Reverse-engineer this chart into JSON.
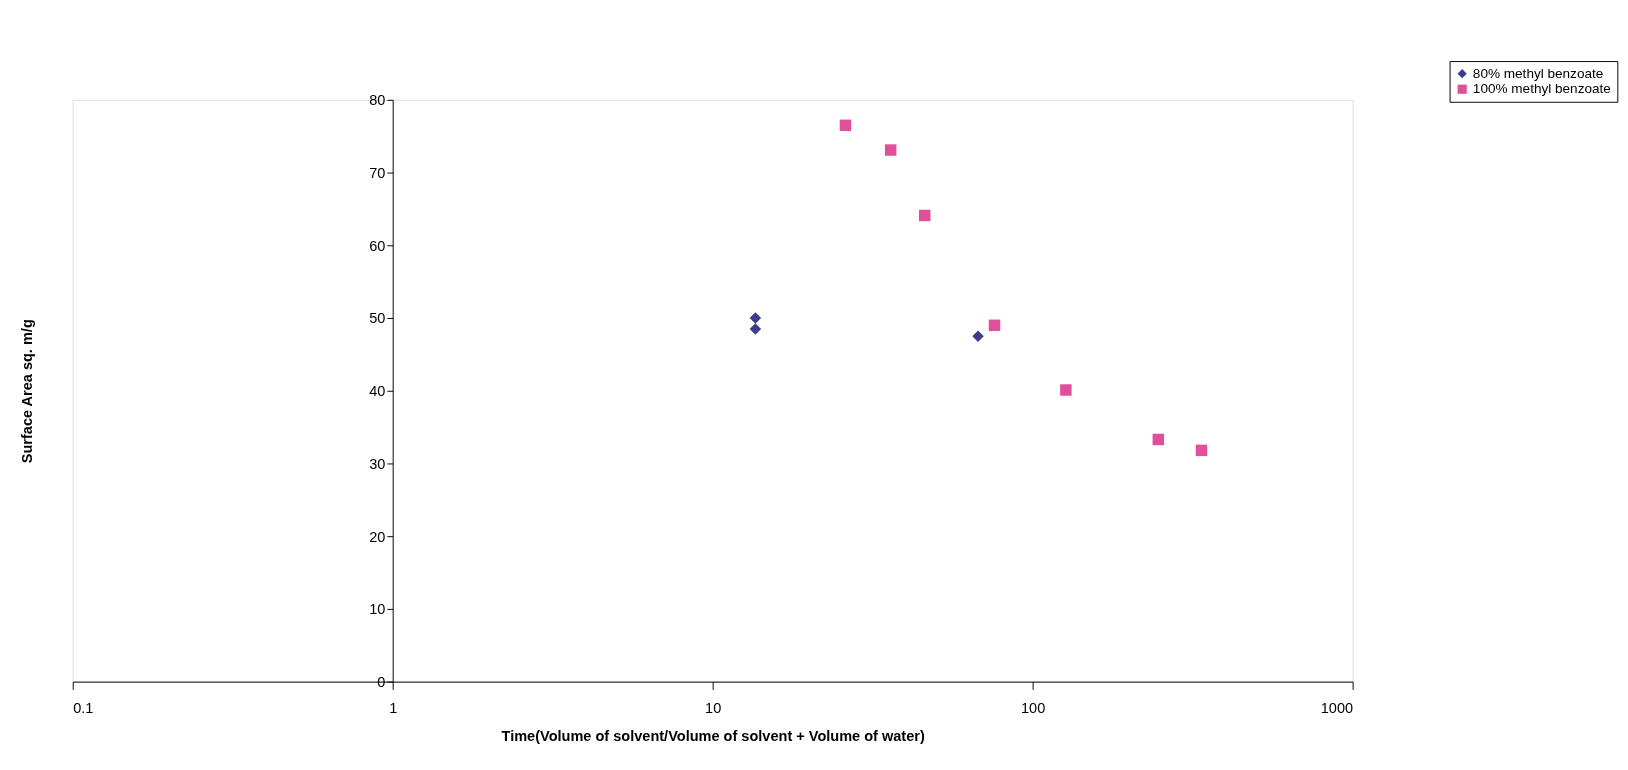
{
  "chart_data": {
    "type": "scatter",
    "xlabel": "Time(Volume of solvent/Volume of solvent + Volume of water)",
    "ylabel": "Surface Area sq. m/g",
    "log": "x",
    "xlim": [
      0.1,
      1000
    ],
    "xticks": [
      0.1,
      1,
      10,
      100,
      1000
    ],
    "ylim": [
      0,
      80
    ],
    "yticks": [
      0,
      10,
      20,
      30,
      40,
      50,
      60,
      70,
      80
    ],
    "grid": false,
    "legend": "top right",
    "series": [
      {
        "name": "80% methyl benzoate",
        "color": "#3c3c8c",
        "marker": "diamond",
        "x": [
          13.6,
          13.6,
          67.5
        ],
        "values": [
          50.0,
          48.5,
          47.5
        ]
      },
      {
        "name": "100% methyl benzoate",
        "color": "#e0509a",
        "marker": "square",
        "x": [
          26,
          36,
          46,
          76,
          127,
          247,
          337
        ],
        "values": [
          76.5,
          73.1,
          64.1,
          49,
          40.1,
          33.3,
          31.8
        ]
      }
    ]
  }
}
